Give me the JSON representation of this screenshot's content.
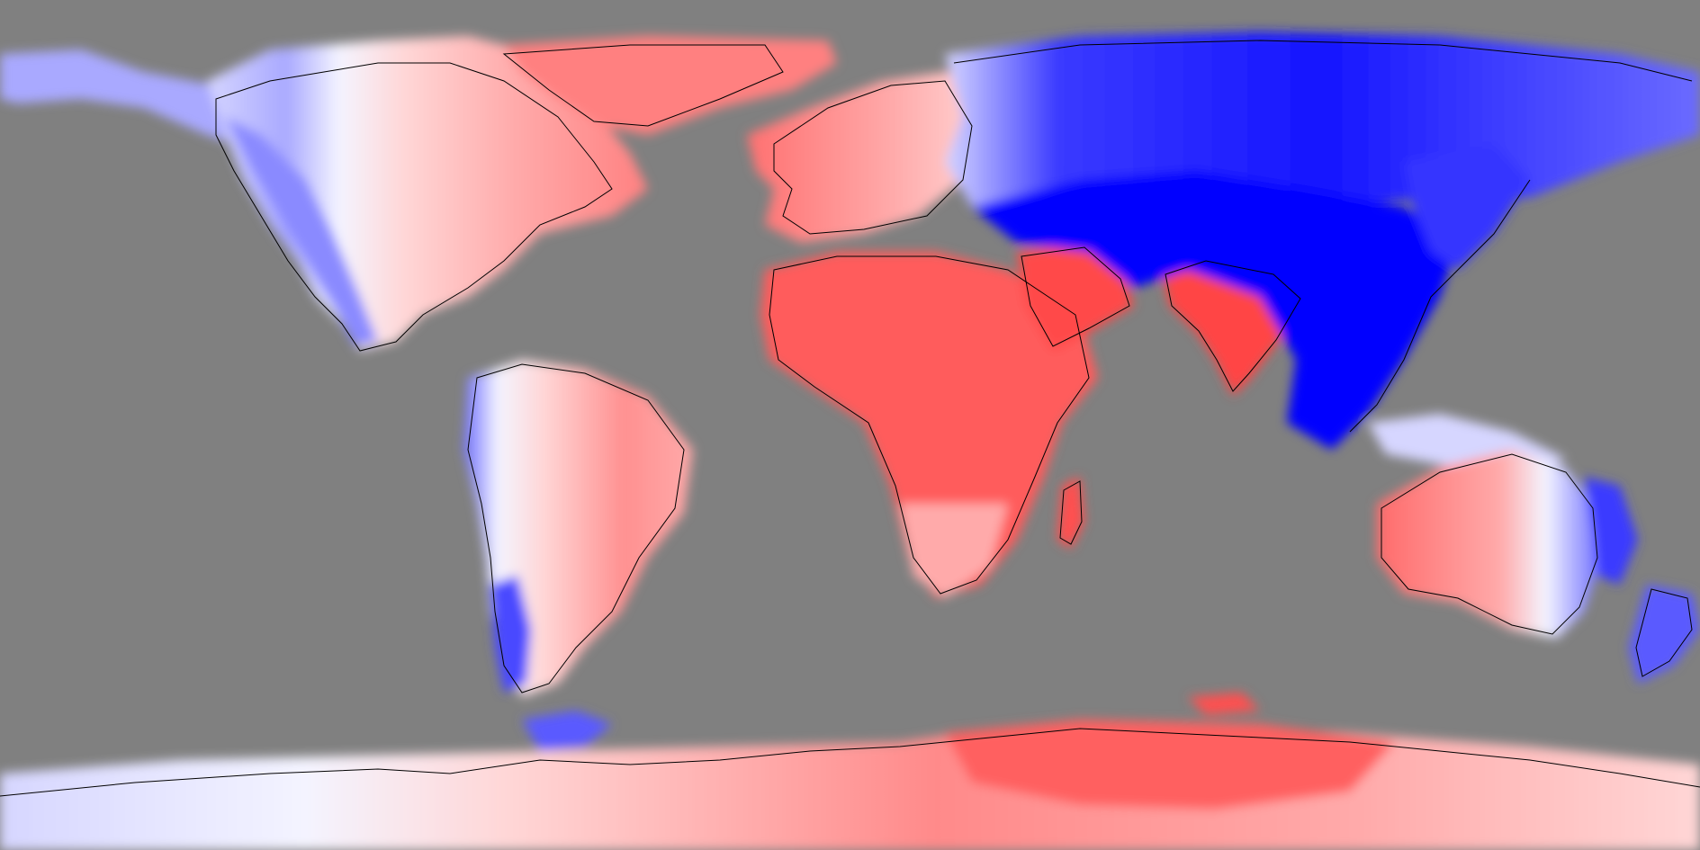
{
  "map": {
    "projection": "equirectangular",
    "ocean_color": "#808080",
    "coastline_color": "#000000",
    "palette": {
      "deep_blue": "#0000ff",
      "blue": "#3a3aff",
      "mid_blue": "#6b6bff",
      "light_blue": "#a9a9ff",
      "pale_blue": "#d6d6ff",
      "white": "#f4f4ff",
      "pale_red": "#ffd6d6",
      "light_red": "#ffaaaa",
      "red": "#ff7f7f",
      "deep_red": "#ff4a4a"
    },
    "regions": [
      {
        "name": "north-america",
        "fill": "red"
      },
      {
        "name": "alaska-west",
        "fill": "light_blue"
      },
      {
        "name": "rockies-band",
        "fill": "pale_blue"
      },
      {
        "name": "greenland",
        "fill": "red"
      },
      {
        "name": "south-america",
        "fill": "red"
      },
      {
        "name": "andes-band",
        "fill": "mid_blue"
      },
      {
        "name": "europe",
        "fill": "red"
      },
      {
        "name": "africa",
        "fill": "deep_red"
      },
      {
        "name": "madagascar",
        "fill": "deep_red"
      },
      {
        "name": "arabia",
        "fill": "deep_red"
      },
      {
        "name": "india",
        "fill": "deep_red"
      },
      {
        "name": "siberia",
        "fill": "mid_blue"
      },
      {
        "name": "central-asia",
        "fill": "deep_blue"
      },
      {
        "name": "east-asia",
        "fill": "deep_blue"
      },
      {
        "name": "australia",
        "fill": "light_red"
      },
      {
        "name": "east-australia-band",
        "fill": "light_blue"
      },
      {
        "name": "new-zealand",
        "fill": "mid_blue"
      },
      {
        "name": "antarctic-peninsula",
        "fill": "mid_blue"
      },
      {
        "name": "antarctica",
        "fill": "light_red"
      },
      {
        "name": "antarctica-core",
        "fill": "deep_red"
      }
    ]
  }
}
